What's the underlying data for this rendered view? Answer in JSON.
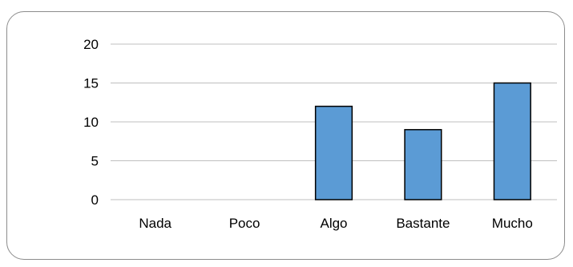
{
  "chart_data": {
    "type": "bar",
    "categories": [
      "Nada",
      "Poco",
      "Algo",
      "Bastante",
      "Mucho"
    ],
    "values": [
      0,
      0,
      12,
      9,
      15
    ],
    "title": "",
    "xlabel": "",
    "ylabel": "",
    "ylim": [
      0,
      20
    ],
    "yticks": [
      0,
      5,
      10,
      15,
      20
    ],
    "grid": true,
    "legend": "none",
    "colors": {
      "bar_fill": "#5b9bd5",
      "bar_stroke": "#000000",
      "grid": "#bfbfbf",
      "frame": "#8c8c8c"
    }
  }
}
